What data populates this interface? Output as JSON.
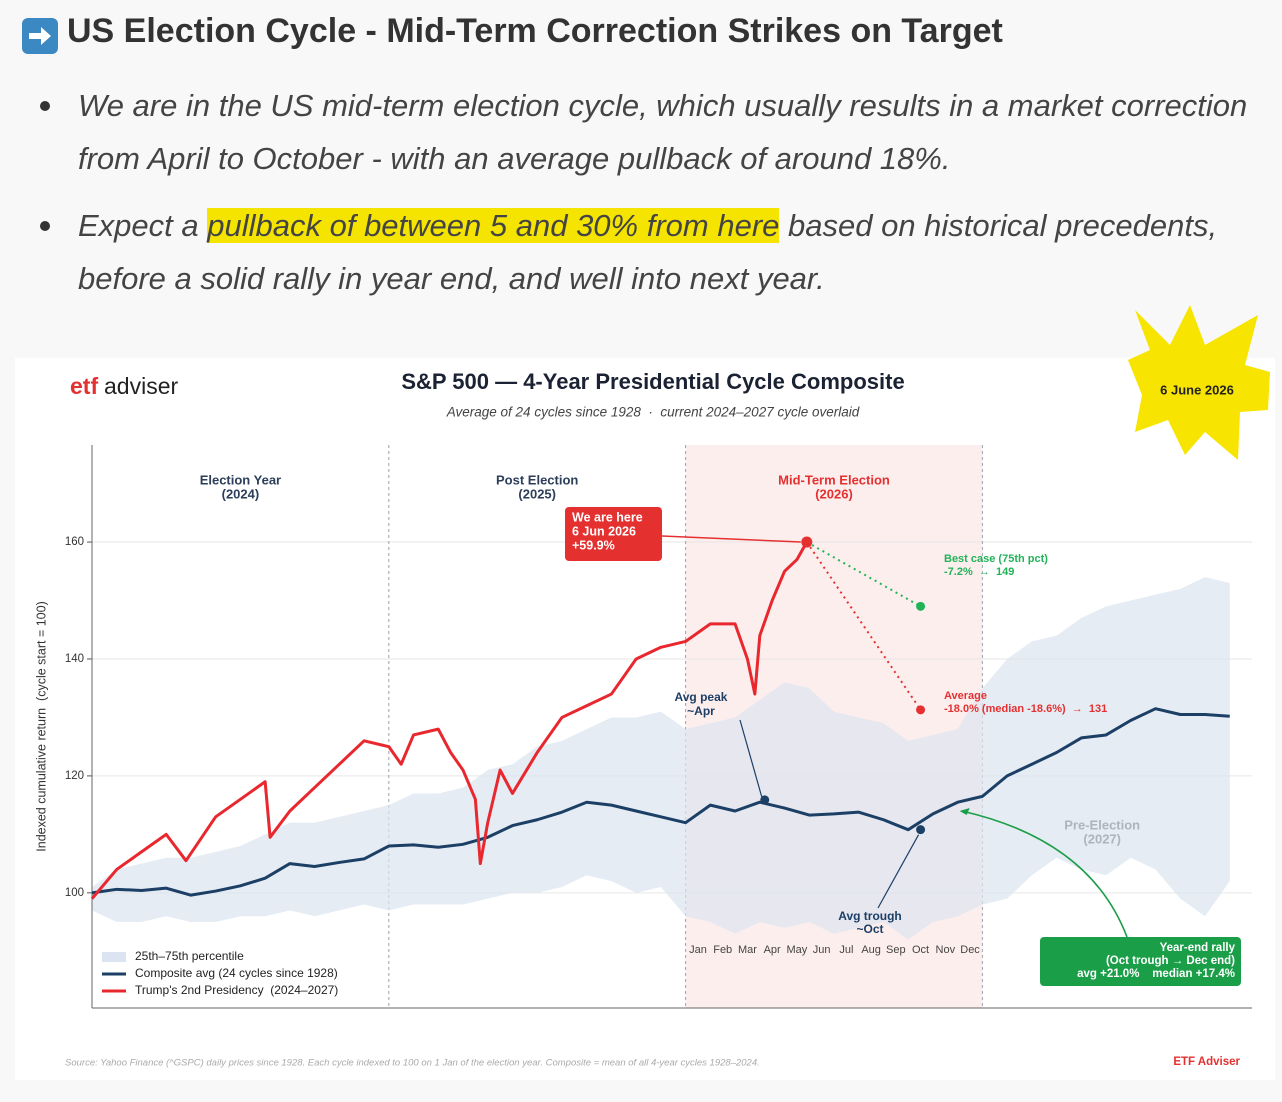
{
  "header": {
    "title": "US Election Cycle - Mid-Term Correction Strikes on Target",
    "bullets": [
      {
        "text": "We are in the US mid-term election cycle, which usually results in a market correction from April to October - with an average pullback of around 18%."
      },
      {
        "before": "Expect a ",
        "highlight": "pullback of between 5 and 30% from here",
        "after": " based on historical precedents, before a solid rally in year end, and well into next year."
      }
    ]
  },
  "chart_data": {
    "type": "line",
    "brand": {
      "accent": "etf",
      "rest": "adviser"
    },
    "date": "6 June 2026",
    "title": "S&P 500 — 4-Year Presidential Cycle Composite",
    "subtitle": "Average of 24 cycles since 1928  ·  current 2024–2027 cycle overlaid",
    "ylabel": "Indexed cumulative return  (cycle start = 100)",
    "xlim": [
      0,
      46.9
    ],
    "ylim": [
      80.3,
      176.6
    ],
    "yticks": [
      100,
      120,
      140,
      160
    ],
    "xticks": [
      {
        "value": 24.5,
        "label": "Jan"
      },
      {
        "value": 25.5,
        "label": "Feb"
      },
      {
        "value": 26.5,
        "label": "Mar"
      },
      {
        "value": 27.5,
        "label": "Apr"
      },
      {
        "value": 28.5,
        "label": "May"
      },
      {
        "value": 29.5,
        "label": "Jun"
      },
      {
        "value": 30.5,
        "label": "Jul"
      },
      {
        "value": 31.5,
        "label": "Aug"
      },
      {
        "value": 32.5,
        "label": "Sep"
      },
      {
        "value": 33.5,
        "label": "Oct"
      },
      {
        "value": 34.5,
        "label": "Nov"
      },
      {
        "value": 35.5,
        "label": "Dec"
      }
    ],
    "grid": true,
    "legend": "lower left",
    "dividers": [
      12,
      24,
      36
    ],
    "highlight_span": {
      "range": [
        24,
        36
      ],
      "color": "#fdeeee"
    },
    "periods": [
      {
        "label": "Election Year",
        "year": "(2024)",
        "start": 0,
        "end": 12,
        "color": "#2c3e5a"
      },
      {
        "label": "Post Election",
        "year": "(2025)",
        "start": 12,
        "end": 24,
        "color": "#2c3e5a"
      },
      {
        "label": "Mid-Term Election",
        "year": "(2026)",
        "start": 24,
        "end": 36,
        "color": "#e53030"
      },
      {
        "label": "Pre-Election",
        "year": "(2027)",
        "start": 36,
        "end": 46.9,
        "color": "#444444"
      }
    ],
    "band": {
      "name": "25th–75th percentile",
      "color": "#dbe4f0",
      "x": [
        0,
        1,
        2,
        3,
        4,
        5,
        6,
        7,
        8,
        9,
        10,
        11,
        12,
        13,
        14,
        15,
        16,
        17,
        18,
        19,
        20,
        21,
        22,
        23,
        24,
        25,
        26,
        27,
        28,
        29,
        30,
        31,
        32,
        33,
        34,
        35,
        36,
        37,
        38,
        39,
        40,
        41,
        42,
        43,
        44,
        45,
        46
      ],
      "lower": [
        97,
        95,
        95,
        96,
        95,
        95,
        96,
        96,
        97,
        96,
        97,
        98,
        97,
        98,
        98,
        98,
        99,
        100,
        100,
        101,
        103,
        102,
        100,
        101,
        96,
        95,
        93,
        95,
        94,
        95,
        93,
        94,
        95,
        92,
        95,
        96,
        98,
        99,
        103,
        106,
        104,
        103,
        106,
        104,
        99,
        96,
        102
      ],
      "upper": [
        101,
        104,
        105,
        106,
        106,
        107,
        108,
        110,
        112,
        112,
        113,
        114,
        115,
        117,
        117,
        118,
        121,
        122,
        125,
        126,
        128,
        130,
        130,
        131,
        128,
        129,
        130,
        133,
        136,
        135,
        131,
        130,
        129,
        126,
        127,
        128,
        135,
        140,
        143,
        144,
        147,
        149,
        150,
        151,
        152,
        154,
        153
      ]
    },
    "series": [
      {
        "name": "Composite avg (24 cycles since 1928)",
        "color": "#1c3f66",
        "x": [
          0,
          1,
          2,
          3,
          4,
          5,
          6,
          7,
          8,
          9,
          10,
          11,
          12,
          13,
          14,
          15,
          16,
          17,
          18,
          19,
          20,
          21,
          22,
          23,
          24,
          25,
          26,
          27,
          28,
          29,
          30,
          31,
          32,
          33,
          34,
          35,
          36,
          37,
          38,
          39,
          40,
          41,
          42,
          43,
          44,
          45,
          46
        ],
        "values": [
          100,
          100.6,
          100.4,
          100.8,
          99.6,
          100.3,
          101.2,
          102.5,
          105,
          104.5,
          105.2,
          105.8,
          108,
          108.2,
          107.8,
          108.3,
          109.5,
          111.5,
          112.5,
          113.8,
          115.5,
          115,
          114,
          113,
          112,
          115,
          114,
          115.5,
          114.5,
          113.3,
          113.5,
          113.8,
          112.5,
          110.8,
          113.5,
          115.5,
          116.5,
          120,
          122,
          124,
          126.5,
          127,
          129.5,
          131.5,
          130.5,
          130.5,
          130.2
        ]
      },
      {
        "name": "Trump's 2nd Presidency  (2024–2027)",
        "color": "#e8282e",
        "x": [
          0,
          1,
          2,
          3,
          3.8,
          5,
          6,
          7,
          7.2,
          8,
          9,
          10,
          11,
          12,
          12.5,
          13,
          14,
          14.5,
          15,
          15.5,
          15.7,
          16,
          16.5,
          17,
          18,
          19,
          20,
          21,
          22,
          23,
          24,
          25,
          26,
          26.5,
          26.8,
          27,
          27.5,
          28,
          28.5,
          28.9
        ],
        "values": [
          99,
          104,
          107,
          110,
          105.5,
          113,
          116,
          119,
          109.5,
          114,
          118,
          122,
          126,
          125,
          122,
          127,
          128,
          124,
          121,
          116,
          105,
          112,
          121,
          117,
          124,
          130,
          132,
          134,
          140,
          142,
          143,
          146,
          146,
          140,
          134,
          144,
          150,
          155,
          157,
          160
        ]
      }
    ],
    "annotations": {
      "now": {
        "lines": [
          "We are here",
          "6 Jun 2026",
          "+59.9%"
        ],
        "point": [
          28.9,
          160
        ],
        "color": "#e53030"
      },
      "best": {
        "lines": [
          "Best case (75th pct)",
          "-7.2%  →  149"
        ],
        "point": [
          33.5,
          149
        ],
        "color": "#22b358"
      },
      "average": {
        "lines": [
          "Average",
          "-18.0% (median -18.6%)  →  131"
        ],
        "point": [
          33.5,
          131.3
        ],
        "color": "#e53030"
      },
      "peak": {
        "lines": [
          "Avg peak",
          "~Apr"
        ],
        "point": [
          27.2,
          115.9
        ],
        "color": "#1c3f66"
      },
      "trough": {
        "lines": [
          "Avg trough",
          "~Oct"
        ],
        "point": [
          33.5,
          110.8
        ],
        "color": "#1c3f66"
      },
      "rally": {
        "lines": [
          "Year-end rally",
          "(Oct trough → Dec end)",
          "avg +21.0%    median +17.4%"
        ],
        "point": [
          35,
          114
        ],
        "color": "#1a9e48"
      }
    },
    "source": "Source: Yahoo Finance (^GSPC) daily prices since 1928. Each cycle indexed to 100 on 1 Jan of the election year. Composite = mean of all 4-year cycles 1928–2024.",
    "credit": "ETF Adviser"
  }
}
